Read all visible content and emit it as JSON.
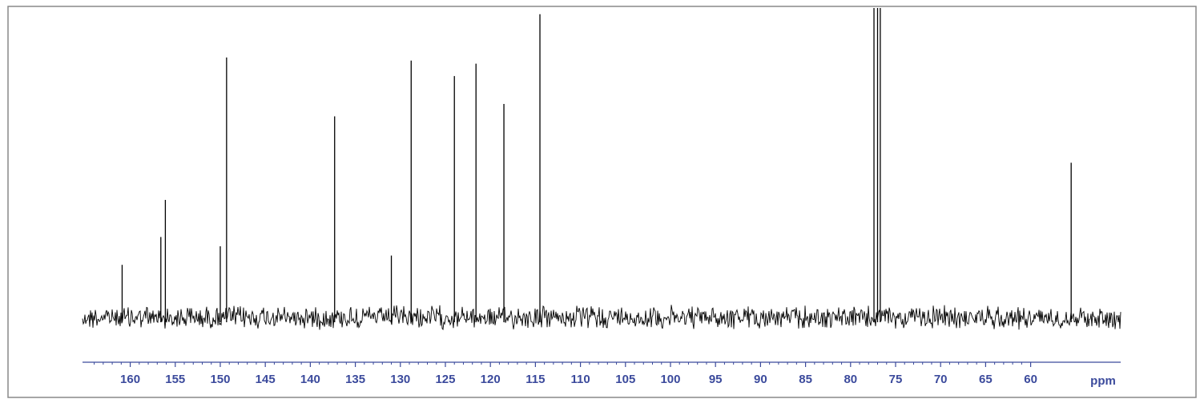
{
  "chart_data": {
    "type": "spectrum",
    "x": [
      160.9,
      156.6,
      156.1,
      150.0,
      149.3,
      137.3,
      131.0,
      128.8,
      124.0,
      121.6,
      118.5,
      114.5,
      77.4,
      77.0,
      76.7,
      55.5
    ],
    "values": [
      17,
      26,
      38,
      23,
      84,
      65,
      20,
      83,
      78,
      82,
      69,
      98,
      100,
      100,
      100,
      50
    ],
    "color": "#000000",
    "axis_color": "#3b4a9c",
    "x_label": "ppm",
    "xlim": [
      165.3,
      50.0
    ],
    "ylim": [
      0,
      100
    ],
    "xticks": [
      160,
      155,
      150,
      145,
      140,
      135,
      130,
      125,
      120,
      115,
      110,
      105,
      100,
      95,
      90,
      85,
      80,
      75,
      70,
      65,
      60
    ]
  }
}
